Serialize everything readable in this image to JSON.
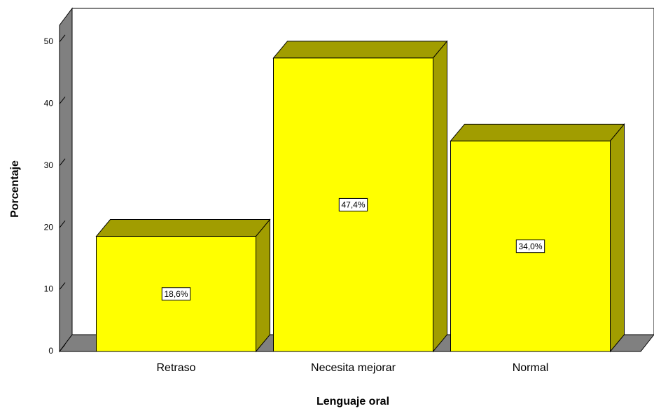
{
  "chart_data": {
    "type": "bar3d",
    "x_label": "Lenguaje oral",
    "y_label": "Porcentaje",
    "categories": [
      "Retraso",
      "Necesita mejorar",
      "Normal"
    ],
    "values": [
      18.6,
      47.4,
      34.0
    ],
    "value_labels": [
      "18,6%",
      "47,4%",
      "34,0%"
    ],
    "color": "#ffff00",
    "ylim": [
      0,
      52.7
    ],
    "yticks": [
      0,
      10,
      20,
      30,
      40,
      50
    ]
  }
}
